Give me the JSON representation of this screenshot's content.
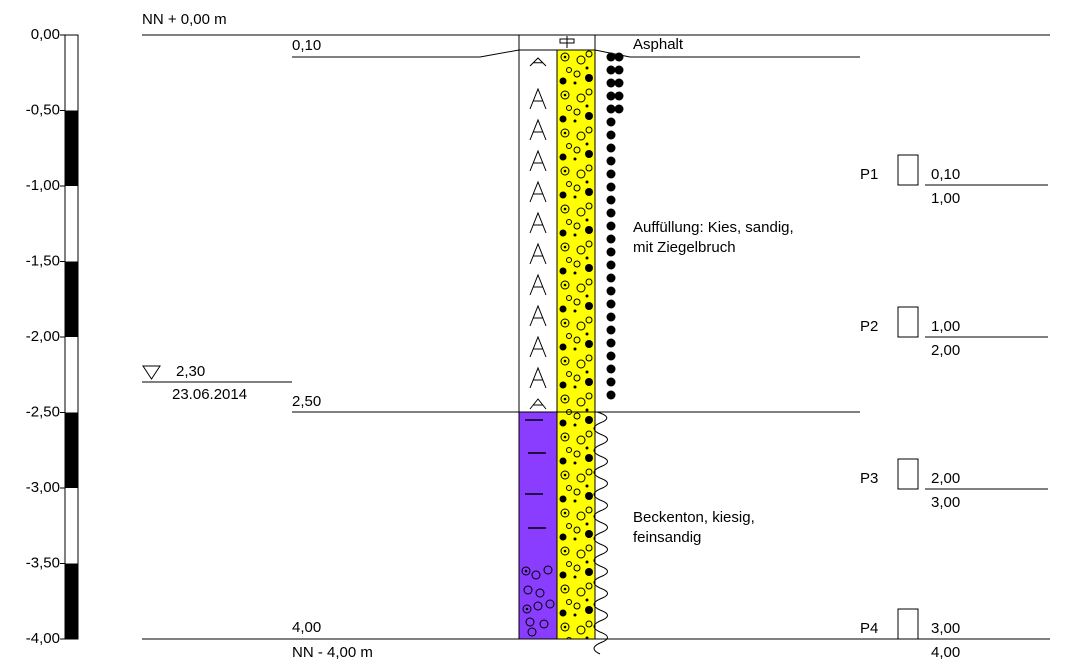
{
  "header": {
    "top": "NN + 0,00 m",
    "bottom": "NN - 4,00 m"
  },
  "scale": {
    "labels": [
      "0,00",
      "-0,50",
      "-1,00",
      "-1,50",
      "-2,00",
      "-2,50",
      "-3,00",
      "-3,50",
      "-4,00"
    ]
  },
  "layers": [
    {
      "depth": "0,10",
      "description": [
        "Asphalt"
      ]
    },
    {
      "depth": "2,50",
      "description": [
        "Auffüllung: Kies, sandig,",
        "mit Ziegelbruch"
      ]
    },
    {
      "depth": "4,00",
      "description": [
        "Beckenton, kiesig,",
        "feinsandig"
      ]
    }
  ],
  "water": {
    "depth": "2,30",
    "date": "23.06.2014"
  },
  "samples": [
    {
      "name": "P1",
      "top": "0,10",
      "bottom": "1,00"
    },
    {
      "name": "P2",
      "top": "1,00",
      "bottom": "2,00"
    },
    {
      "name": "P3",
      "top": "2,00",
      "bottom": "3,00"
    },
    {
      "name": "P4",
      "top": "3,00",
      "bottom": "4,00"
    }
  ]
}
